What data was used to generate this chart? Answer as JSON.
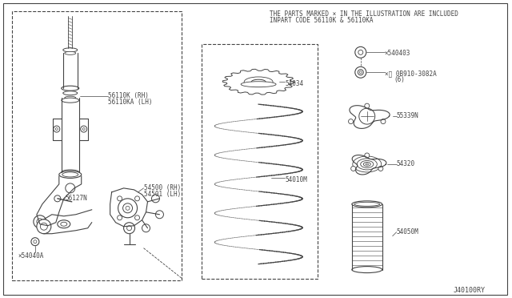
{
  "bg_color": "#ffffff",
  "line_color": "#444444",
  "title_note_line1": "THE PARTS MARKED × IN THE ILLUSTRATION ARE INCLUDED",
  "title_note_line2": "INPART CODE 56110K & 56110KA",
  "diagram_id": "J40100RY",
  "parts": {
    "56110K_RH": "56110K (RH)",
    "56110KA_LH": "56110KA (LH)",
    "54500_RH": "54500 (RH)",
    "54501_LH": "54501 (LH)",
    "56127N": "56127N",
    "54040A": "×54040A",
    "54034": "54034",
    "54010M": "54010M",
    "540403": "×540403",
    "0B910_3082A_line1": "×⒩ 0B910-3082A",
    "0B910_3082A_line2": "(6)",
    "55339N": "55339N",
    "54320": "54320",
    "54050M": "54050M"
  }
}
